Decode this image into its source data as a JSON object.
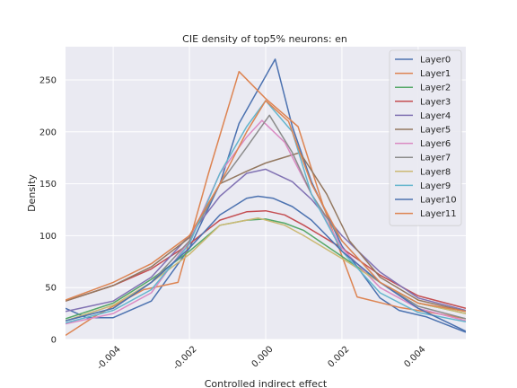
{
  "chart_data": {
    "type": "line",
    "title": "CIE density of top5% neurons: en",
    "xlabel": "Controlled indirect effect",
    "ylabel": "Density",
    "xlim": [
      -0.00525,
      0.00525
    ],
    "ylim": [
      0,
      282
    ],
    "x_ticks": [
      -0.004,
      -0.002,
      0.0,
      0.002,
      0.004
    ],
    "x_tick_labels": [
      "-0.004",
      "-0.002",
      "0.000",
      "0.002",
      "0.004"
    ],
    "y_ticks": [
      0,
      50,
      100,
      150,
      200,
      250
    ],
    "y_tick_labels": [
      "0",
      "50",
      "100",
      "150",
      "200",
      "250"
    ],
    "grid": true,
    "legend_position": "upper right",
    "series": [
      {
        "name": "Layer0",
        "color": "#4c72b0",
        "points": [
          [
            -0.00525,
            30
          ],
          [
            -0.0047,
            21
          ],
          [
            -0.004,
            21
          ],
          [
            -0.003,
            37
          ],
          [
            -0.002,
            88
          ],
          [
            -0.0012,
            150
          ],
          [
            -0.0007,
            208
          ],
          [
            0.00025,
            270
          ],
          [
            0.0007,
            205
          ],
          [
            0.0012,
            152
          ],
          [
            0.002,
            90
          ],
          [
            0.003,
            40
          ],
          [
            0.0035,
            28
          ],
          [
            0.0042,
            22
          ],
          [
            0.00525,
            7
          ]
        ]
      },
      {
        "name": "Layer1",
        "color": "#dd8452",
        "points": [
          [
            -0.00525,
            4
          ],
          [
            -0.0045,
            22
          ],
          [
            -0.004,
            32
          ],
          [
            -0.0032,
            48
          ],
          [
            -0.0023,
            55
          ],
          [
            -0.0015,
            160
          ],
          [
            -0.0007,
            258
          ],
          [
            0.0,
            232
          ],
          [
            0.00085,
            205
          ],
          [
            0.0015,
            130
          ],
          [
            0.0024,
            41
          ],
          [
            0.0035,
            31
          ],
          [
            0.0045,
            25
          ],
          [
            0.00525,
            20
          ]
        ]
      },
      {
        "name": "Layer2",
        "color": "#55a868",
        "points": [
          [
            -0.00525,
            20
          ],
          [
            -0.004,
            35
          ],
          [
            -0.003,
            58
          ],
          [
            -0.002,
            85
          ],
          [
            -0.0012,
            110
          ],
          [
            -0.0005,
            115
          ],
          [
            0.0,
            116
          ],
          [
            0.0005,
            112
          ],
          [
            0.001,
            105
          ],
          [
            0.002,
            80
          ],
          [
            0.003,
            55
          ],
          [
            0.004,
            35
          ],
          [
            0.00525,
            25
          ]
        ]
      },
      {
        "name": "Layer3",
        "color": "#c44e52",
        "points": [
          [
            -0.00525,
            37
          ],
          [
            -0.004,
            52
          ],
          [
            -0.003,
            68
          ],
          [
            -0.002,
            92
          ],
          [
            -0.0012,
            115
          ],
          [
            -0.0005,
            123
          ],
          [
            0.0,
            124
          ],
          [
            0.0005,
            120
          ],
          [
            0.001,
            110
          ],
          [
            0.002,
            88
          ],
          [
            0.003,
            62
          ],
          [
            0.004,
            42
          ],
          [
            0.00525,
            30
          ]
        ]
      },
      {
        "name": "Layer4",
        "color": "#8172b3",
        "points": [
          [
            -0.00525,
            27
          ],
          [
            -0.0045,
            33
          ],
          [
            -0.004,
            37
          ],
          [
            -0.003,
            60
          ],
          [
            -0.002,
            100
          ],
          [
            -0.0012,
            138
          ],
          [
            -0.0005,
            160
          ],
          [
            0.0,
            164
          ],
          [
            0.0007,
            152
          ],
          [
            0.0012,
            135
          ],
          [
            0.002,
            100
          ],
          [
            0.003,
            65
          ],
          [
            0.004,
            40
          ],
          [
            0.00525,
            28
          ]
        ]
      },
      {
        "name": "Layer5",
        "color": "#937860",
        "points": [
          [
            -0.00525,
            37
          ],
          [
            -0.004,
            52
          ],
          [
            -0.003,
            70
          ],
          [
            -0.002,
            98
          ],
          [
            -0.0012,
            150
          ],
          [
            -0.0005,
            162
          ],
          [
            0.0,
            170
          ],
          [
            0.0009,
            180
          ],
          [
            0.0016,
            140
          ],
          [
            0.0022,
            95
          ],
          [
            0.003,
            60
          ],
          [
            0.004,
            38
          ],
          [
            0.00525,
            27
          ]
        ]
      },
      {
        "name": "Layer6",
        "color": "#da8bc3",
        "points": [
          [
            -0.00525,
            15
          ],
          [
            -0.004,
            25
          ],
          [
            -0.003,
            45
          ],
          [
            -0.002,
            95
          ],
          [
            -0.0012,
            160
          ],
          [
            -0.0005,
            195
          ],
          [
            -0.0001,
            211
          ],
          [
            0.0005,
            190
          ],
          [
            0.0012,
            140
          ],
          [
            0.002,
            88
          ],
          [
            0.003,
            50
          ],
          [
            0.004,
            30
          ],
          [
            0.00525,
            18
          ]
        ]
      },
      {
        "name": "Layer7",
        "color": "#8c8c8c",
        "points": [
          [
            -0.00525,
            18
          ],
          [
            -0.004,
            30
          ],
          [
            -0.003,
            55
          ],
          [
            -0.002,
            95
          ],
          [
            -0.0012,
            150
          ],
          [
            -0.0005,
            185
          ],
          [
            0.0001,
            216
          ],
          [
            0.0007,
            180
          ],
          [
            0.0012,
            140
          ],
          [
            0.002,
            95
          ],
          [
            0.003,
            55
          ],
          [
            0.004,
            32
          ],
          [
            0.00525,
            20
          ]
        ]
      },
      {
        "name": "Layer8",
        "color": "#ccb974",
        "points": [
          [
            -0.00525,
            18
          ],
          [
            -0.004,
            33
          ],
          [
            -0.003,
            55
          ],
          [
            -0.002,
            82
          ],
          [
            -0.0012,
            110
          ],
          [
            -0.0005,
            115
          ],
          [
            -0.0002,
            117
          ],
          [
            0.0005,
            110
          ],
          [
            0.001,
            100
          ],
          [
            0.002,
            78
          ],
          [
            0.003,
            55
          ],
          [
            0.004,
            35
          ],
          [
            0.00525,
            25
          ]
        ]
      },
      {
        "name": "Layer9",
        "color": "#64b5cd",
        "points": [
          [
            -0.00525,
            16
          ],
          [
            -0.004,
            28
          ],
          [
            -0.003,
            48
          ],
          [
            -0.002,
            92
          ],
          [
            -0.0012,
            160
          ],
          [
            -0.0005,
            205
          ],
          [
            0.0,
            230
          ],
          [
            0.0007,
            200
          ],
          [
            0.0012,
            140
          ],
          [
            0.002,
            85
          ],
          [
            0.003,
            45
          ],
          [
            0.004,
            26
          ],
          [
            0.00525,
            17
          ]
        ]
      },
      {
        "name": "Layer10",
        "color": "#4c72b0",
        "points": [
          [
            -0.00525,
            18
          ],
          [
            -0.004,
            30
          ],
          [
            -0.003,
            55
          ],
          [
            -0.002,
            88
          ],
          [
            -0.0012,
            120
          ],
          [
            -0.0005,
            136
          ],
          [
            -0.0002,
            138
          ],
          [
            0.0002,
            136
          ],
          [
            0.0007,
            128
          ],
          [
            0.0012,
            115
          ],
          [
            0.002,
            85
          ],
          [
            0.003,
            55
          ],
          [
            0.004,
            30
          ],
          [
            0.00525,
            8
          ]
        ]
      },
      {
        "name": "Layer11",
        "color": "#dd8452",
        "points": [
          [
            -0.00525,
            38
          ],
          [
            -0.004,
            55
          ],
          [
            -0.003,
            73
          ],
          [
            -0.002,
            100
          ],
          [
            -0.0012,
            150
          ],
          [
            -0.0005,
            200
          ],
          [
            0.0,
            230
          ],
          [
            0.0006,
            210
          ],
          [
            0.0012,
            150
          ],
          [
            0.002,
            95
          ],
          [
            0.003,
            55
          ],
          [
            0.004,
            35
          ],
          [
            0.00525,
            27
          ]
        ]
      }
    ]
  }
}
